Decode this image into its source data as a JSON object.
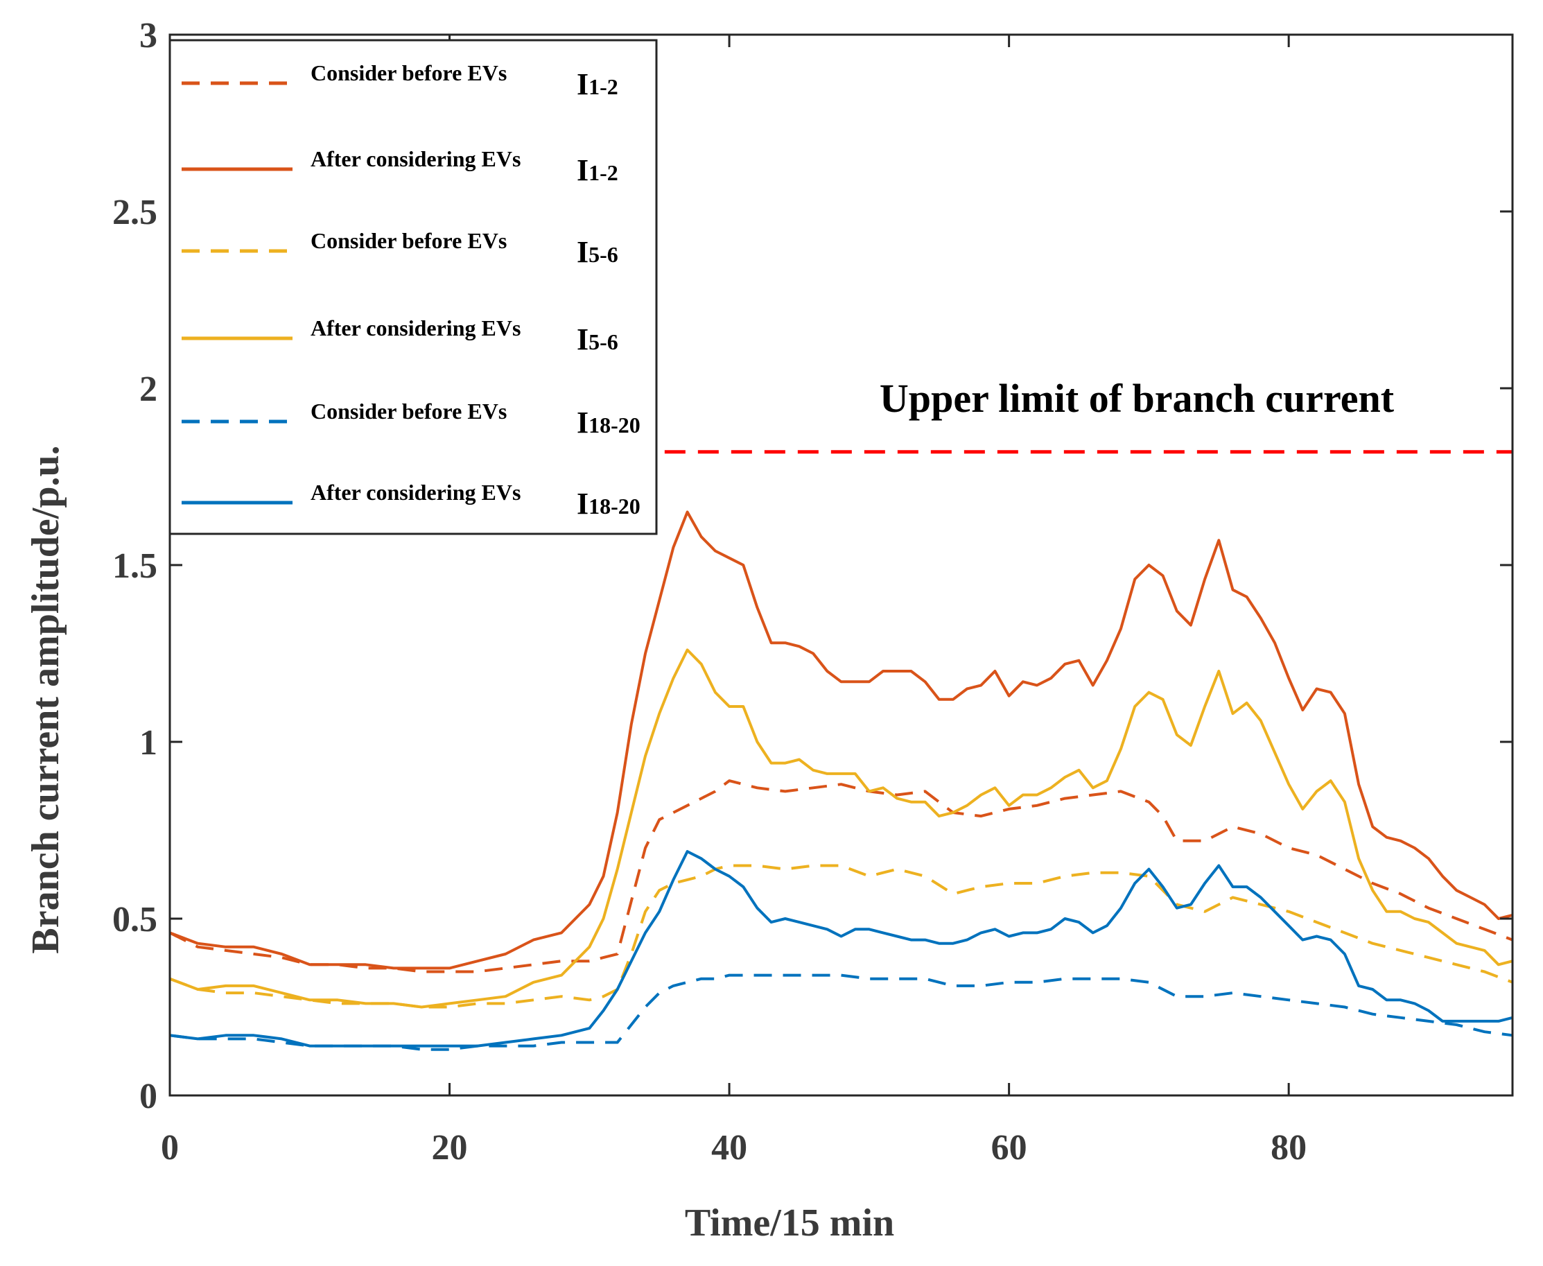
{
  "chart_data": {
    "type": "line",
    "xlabel": "Time/15 min",
    "ylabel": "Branch current amplitude/p.u.",
    "xlim": [
      0,
      96
    ],
    "ylim": [
      0,
      3
    ],
    "xticks": [
      0,
      20,
      40,
      60,
      80
    ],
    "xtick_labels": [
      "0",
      "20",
      "40",
      "60",
      "80"
    ],
    "yticks": [
      0,
      0.5,
      1,
      1.5,
      2,
      2.5,
      3
    ],
    "ytick_labels": [
      "0",
      "0.5",
      "1",
      "1.5",
      "2",
      "2.5",
      "3"
    ],
    "legend_position": "top-left",
    "grid": false,
    "annotation": {
      "text": "Upper limit of branch current",
      "y": 1.82,
      "x_start": 33,
      "x_end": 96,
      "color": "#ff0000"
    },
    "series": [
      {
        "name": "Consider before EVs I1-2",
        "label": "Consider before EVs",
        "sym_main": "I",
        "sym_sub": "1-2",
        "color": "#d95319",
        "dash": true,
        "x": [
          0,
          2,
          4,
          6,
          8,
          10,
          12,
          14,
          16,
          18,
          20,
          22,
          24,
          26,
          28,
          30,
          31,
          32,
          33,
          34,
          35,
          36,
          37,
          38,
          39,
          40,
          41,
          42,
          44,
          46,
          48,
          50,
          52,
          54,
          55,
          56,
          58,
          60,
          62,
          64,
          66,
          68,
          70,
          71,
          72,
          74,
          76,
          78,
          80,
          82,
          84,
          86,
          88,
          90,
          92,
          94,
          96
        ],
        "values": [
          0.46,
          0.42,
          0.41,
          0.4,
          0.39,
          0.37,
          0.37,
          0.36,
          0.36,
          0.35,
          0.35,
          0.35,
          0.36,
          0.37,
          0.38,
          0.38,
          0.39,
          0.4,
          0.55,
          0.7,
          0.78,
          0.8,
          0.82,
          0.84,
          0.86,
          0.89,
          0.88,
          0.87,
          0.86,
          0.87,
          0.88,
          0.86,
          0.85,
          0.86,
          0.83,
          0.8,
          0.79,
          0.81,
          0.82,
          0.84,
          0.85,
          0.86,
          0.83,
          0.79,
          0.72,
          0.72,
          0.76,
          0.74,
          0.7,
          0.68,
          0.64,
          0.6,
          0.57,
          0.53,
          0.5,
          0.47,
          0.44
        ]
      },
      {
        "name": "After considering EVs I1-2",
        "label": "After considering EVs",
        "sym_main": "I",
        "sym_sub": "1-2",
        "color": "#d95319",
        "dash": false,
        "x": [
          0,
          2,
          4,
          6,
          8,
          10,
          12,
          14,
          16,
          18,
          20,
          22,
          24,
          26,
          28,
          30,
          31,
          32,
          33,
          34,
          35,
          36,
          37,
          38,
          39,
          40,
          41,
          42,
          43,
          44,
          45,
          46,
          47,
          48,
          49,
          50,
          51,
          52,
          53,
          54,
          55,
          56,
          57,
          58,
          59,
          60,
          61,
          62,
          63,
          64,
          65,
          66,
          67,
          68,
          69,
          70,
          71,
          72,
          73,
          74,
          75,
          76,
          77,
          78,
          79,
          80,
          81,
          82,
          83,
          84,
          85,
          86,
          87,
          88,
          89,
          90,
          91,
          92,
          93,
          94,
          95,
          96
        ],
        "values": [
          0.46,
          0.43,
          0.42,
          0.42,
          0.4,
          0.37,
          0.37,
          0.37,
          0.36,
          0.36,
          0.36,
          0.38,
          0.4,
          0.44,
          0.46,
          0.54,
          0.62,
          0.8,
          1.05,
          1.25,
          1.4,
          1.55,
          1.65,
          1.58,
          1.54,
          1.52,
          1.5,
          1.38,
          1.28,
          1.28,
          1.27,
          1.25,
          1.2,
          1.17,
          1.17,
          1.17,
          1.2,
          1.2,
          1.2,
          1.17,
          1.12,
          1.12,
          1.15,
          1.16,
          1.2,
          1.13,
          1.17,
          1.16,
          1.18,
          1.22,
          1.23,
          1.16,
          1.23,
          1.32,
          1.46,
          1.5,
          1.47,
          1.37,
          1.33,
          1.46,
          1.57,
          1.43,
          1.41,
          1.35,
          1.28,
          1.18,
          1.09,
          1.15,
          1.14,
          1.08,
          0.88,
          0.76,
          0.73,
          0.72,
          0.7,
          0.67,
          0.62,
          0.58,
          0.56,
          0.54,
          0.5,
          0.51
        ]
      },
      {
        "name": "Consider before EVs I5-6",
        "label": "Consider before EVs",
        "sym_main": "I",
        "sym_sub": "5-6",
        "color": "#edb120",
        "dash": true,
        "x": [
          0,
          2,
          4,
          6,
          8,
          10,
          12,
          14,
          16,
          18,
          20,
          22,
          24,
          26,
          28,
          30,
          31,
          32,
          33,
          34,
          35,
          36,
          37,
          38,
          39,
          40,
          42,
          44,
          46,
          48,
          50,
          52,
          54,
          56,
          58,
          60,
          62,
          64,
          66,
          68,
          70,
          72,
          74,
          76,
          78,
          80,
          82,
          84,
          86,
          88,
          90,
          92,
          94,
          96
        ],
        "values": [
          0.33,
          0.3,
          0.29,
          0.29,
          0.28,
          0.27,
          0.26,
          0.26,
          0.26,
          0.25,
          0.25,
          0.26,
          0.26,
          0.27,
          0.28,
          0.27,
          0.28,
          0.3,
          0.4,
          0.52,
          0.58,
          0.6,
          0.61,
          0.62,
          0.64,
          0.65,
          0.65,
          0.64,
          0.65,
          0.65,
          0.62,
          0.64,
          0.62,
          0.57,
          0.59,
          0.6,
          0.6,
          0.62,
          0.63,
          0.63,
          0.62,
          0.54,
          0.52,
          0.56,
          0.54,
          0.52,
          0.49,
          0.46,
          0.43,
          0.41,
          0.39,
          0.37,
          0.35,
          0.32
        ]
      },
      {
        "name": "After considering EVs I5-6",
        "label": "After considering EVs",
        "sym_main": "I",
        "sym_sub": "5-6",
        "color": "#edb120",
        "dash": false,
        "x": [
          0,
          2,
          4,
          6,
          8,
          10,
          12,
          14,
          16,
          18,
          20,
          22,
          24,
          26,
          28,
          30,
          31,
          32,
          33,
          34,
          35,
          36,
          37,
          38,
          39,
          40,
          41,
          42,
          43,
          44,
          45,
          46,
          47,
          48,
          49,
          50,
          51,
          52,
          53,
          54,
          55,
          56,
          57,
          58,
          59,
          60,
          61,
          62,
          63,
          64,
          65,
          66,
          67,
          68,
          69,
          70,
          71,
          72,
          73,
          74,
          75,
          76,
          77,
          78,
          79,
          80,
          81,
          82,
          83,
          84,
          85,
          86,
          87,
          88,
          89,
          90,
          91,
          92,
          93,
          94,
          95,
          96
        ],
        "values": [
          0.33,
          0.3,
          0.31,
          0.31,
          0.29,
          0.27,
          0.27,
          0.26,
          0.26,
          0.25,
          0.26,
          0.27,
          0.28,
          0.32,
          0.34,
          0.42,
          0.5,
          0.64,
          0.8,
          0.96,
          1.08,
          1.18,
          1.26,
          1.22,
          1.14,
          1.1,
          1.1,
          1.0,
          0.94,
          0.94,
          0.95,
          0.92,
          0.91,
          0.91,
          0.91,
          0.86,
          0.87,
          0.84,
          0.83,
          0.83,
          0.79,
          0.8,
          0.82,
          0.85,
          0.87,
          0.82,
          0.85,
          0.85,
          0.87,
          0.9,
          0.92,
          0.87,
          0.89,
          0.98,
          1.1,
          1.14,
          1.12,
          1.02,
          0.99,
          1.1,
          1.2,
          1.08,
          1.11,
          1.06,
          0.97,
          0.88,
          0.81,
          0.86,
          0.89,
          0.83,
          0.67,
          0.58,
          0.52,
          0.52,
          0.5,
          0.49,
          0.46,
          0.43,
          0.42,
          0.41,
          0.37,
          0.38
        ]
      },
      {
        "name": "Consider before EVs I18-20",
        "label": "Consider before EVs",
        "sym_main": "I",
        "sym_sub": "18-20",
        "color": "#0072bd",
        "dash": true,
        "x": [
          0,
          2,
          4,
          6,
          8,
          10,
          12,
          14,
          16,
          18,
          20,
          22,
          24,
          26,
          28,
          30,
          31,
          32,
          33,
          34,
          35,
          36,
          37,
          38,
          39,
          40,
          42,
          44,
          46,
          48,
          50,
          52,
          54,
          56,
          58,
          60,
          62,
          64,
          66,
          68,
          70,
          72,
          74,
          76,
          78,
          80,
          82,
          84,
          86,
          88,
          90,
          92,
          94,
          96
        ],
        "values": [
          0.17,
          0.16,
          0.16,
          0.16,
          0.15,
          0.14,
          0.14,
          0.14,
          0.14,
          0.13,
          0.13,
          0.14,
          0.14,
          0.14,
          0.15,
          0.15,
          0.15,
          0.15,
          0.2,
          0.25,
          0.29,
          0.31,
          0.32,
          0.33,
          0.33,
          0.34,
          0.34,
          0.34,
          0.34,
          0.34,
          0.33,
          0.33,
          0.33,
          0.31,
          0.31,
          0.32,
          0.32,
          0.33,
          0.33,
          0.33,
          0.32,
          0.28,
          0.28,
          0.29,
          0.28,
          0.27,
          0.26,
          0.25,
          0.23,
          0.22,
          0.21,
          0.2,
          0.18,
          0.17
        ]
      },
      {
        "name": "After considering EVs I18-20",
        "label": "After considering EVs",
        "sym_main": "I",
        "sym_sub": "18-20",
        "color": "#0072bd",
        "dash": false,
        "x": [
          0,
          2,
          4,
          6,
          8,
          10,
          12,
          14,
          16,
          18,
          20,
          22,
          24,
          26,
          28,
          30,
          31,
          32,
          33,
          34,
          35,
          36,
          37,
          38,
          39,
          40,
          41,
          42,
          43,
          44,
          45,
          46,
          47,
          48,
          49,
          50,
          51,
          52,
          53,
          54,
          55,
          56,
          57,
          58,
          59,
          60,
          61,
          62,
          63,
          64,
          65,
          66,
          67,
          68,
          69,
          70,
          71,
          72,
          73,
          74,
          75,
          76,
          77,
          78,
          79,
          80,
          81,
          82,
          83,
          84,
          85,
          86,
          87,
          88,
          89,
          90,
          91,
          92,
          93,
          94,
          95,
          96
        ],
        "values": [
          0.17,
          0.16,
          0.17,
          0.17,
          0.16,
          0.14,
          0.14,
          0.14,
          0.14,
          0.14,
          0.14,
          0.14,
          0.15,
          0.16,
          0.17,
          0.19,
          0.24,
          0.3,
          0.38,
          0.46,
          0.52,
          0.61,
          0.69,
          0.67,
          0.64,
          0.62,
          0.59,
          0.53,
          0.49,
          0.5,
          0.49,
          0.48,
          0.47,
          0.45,
          0.47,
          0.47,
          0.46,
          0.45,
          0.44,
          0.44,
          0.43,
          0.43,
          0.44,
          0.46,
          0.47,
          0.45,
          0.46,
          0.46,
          0.47,
          0.5,
          0.49,
          0.46,
          0.48,
          0.53,
          0.6,
          0.64,
          0.59,
          0.53,
          0.54,
          0.6,
          0.65,
          0.59,
          0.59,
          0.56,
          0.52,
          0.48,
          0.44,
          0.45,
          0.44,
          0.4,
          0.31,
          0.3,
          0.27,
          0.27,
          0.26,
          0.24,
          0.21,
          0.21,
          0.21,
          0.21,
          0.21,
          0.22
        ]
      }
    ]
  }
}
